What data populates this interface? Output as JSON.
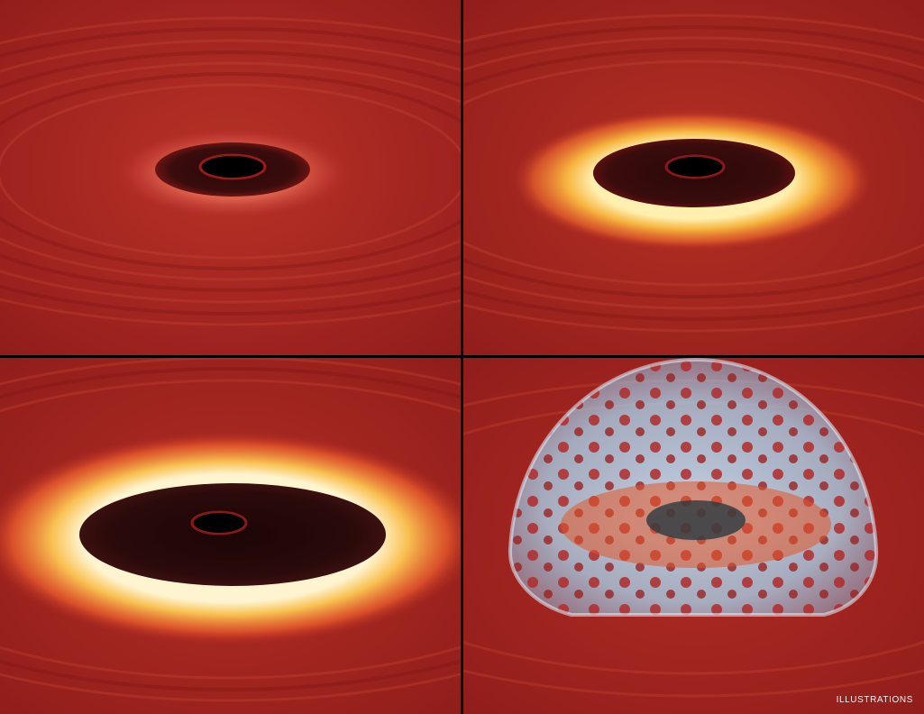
{
  "caption": "ILLUSTRATIONS",
  "colors": {
    "disk_base": "#a32222",
    "disk_band": "#c23a2a",
    "disk_dark": "#7a1414",
    "glow_inner": "#fff2b8",
    "glow_mid": "#f6b03c",
    "glow_outer": "#e2552a",
    "cavity": "#1a0606",
    "hole": "#000000",
    "plasma": "#cfefff",
    "plasma_edge": "#8fc4e6"
  },
  "panels": [
    {
      "name": "panel-small-cavity",
      "stage": 1
    },
    {
      "name": "panel-heated-ring",
      "stage": 2
    },
    {
      "name": "panel-large-cavity",
      "stage": 3
    },
    {
      "name": "panel-corona-dome",
      "stage": 4
    }
  ]
}
